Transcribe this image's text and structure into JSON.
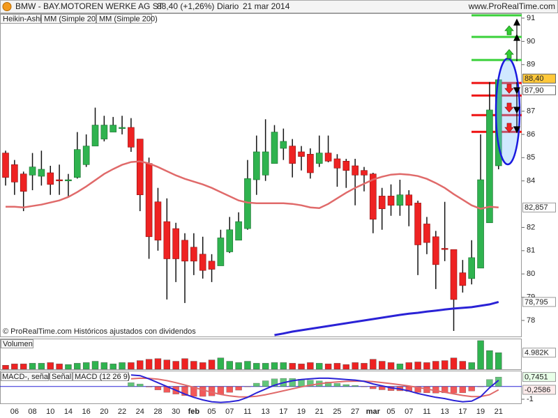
{
  "header": {
    "title": "BMW - BAY.MOTOREN WERKE AG ST",
    "price": "88,40 (+1,26%)",
    "period": "Diario",
    "date": "21 mar 2014",
    "site": "www.ProRealTime.com"
  },
  "footer_note": "© ProRealTime.com Históricos ajustados con dividendos",
  "chart_data": [
    {
      "type": "candlestick",
      "candle_name": "Heikin-Ashi",
      "up_color": "#2fb34f",
      "down_color": "#ee2222",
      "categories": [
        null,
        "06",
        null,
        "08",
        null,
        "10",
        null,
        "14",
        null,
        "16",
        null,
        "20",
        null,
        "22",
        null,
        "24",
        null,
        "28",
        null,
        "30",
        null,
        "feb",
        null,
        "05",
        null,
        "07",
        null,
        "11",
        null,
        "13",
        null,
        "17",
        null,
        "19",
        null,
        "21",
        null,
        "25",
        null,
        "27",
        null,
        "mar",
        null,
        "05",
        null,
        "07",
        null,
        "11",
        null,
        "13",
        null,
        "17",
        null,
        "19",
        null,
        "21"
      ],
      "open": [
        85.2,
        84.7,
        84.3,
        84.25,
        84.2,
        84.35,
        84.05,
        84.0,
        84.15,
        84.7,
        85.5,
        85.8,
        86.1,
        86.25,
        86.3,
        85.8,
        84.75,
        83.1,
        82.25,
        81.95,
        81.45,
        81.15,
        80.85,
        80.55,
        80.35,
        80.95,
        81.45,
        81.95,
        84.05,
        84.25,
        84.75,
        85.4,
        85.5,
        85.25,
        85.15,
        84.75,
        85.2,
        84.95,
        84.85,
        84.65,
        84.45,
        84.3,
        83.35,
        83.35,
        82.95,
        83.4,
        83.05,
        82.15,
        81.6,
        81.1,
        81.05,
        80.05,
        79.8,
        80.25,
        82.2,
        84.65
      ],
      "high": [
        85.3,
        84.9,
        84.4,
        85.2,
        85.3,
        84.65,
        84.7,
        84.3,
        86.1,
        86.0,
        87.15,
        86.8,
        86.75,
        86.8,
        86.7,
        85.8,
        85.0,
        83.7,
        83.25,
        82.2,
        81.75,
        81.75,
        81.6,
        80.85,
        81.9,
        82.45,
        82.65,
        84.9,
        85.95,
        86.65,
        86.4,
        86.25,
        85.8,
        85.5,
        85.4,
        85.95,
        85.95,
        85.15,
        84.95,
        84.95,
        84.6,
        84.35,
        83.7,
        83.85,
        84.05,
        83.6,
        83.15,
        82.45,
        81.85,
        83.1,
        81.05,
        80.6,
        81.45,
        86.0,
        88.25,
        88.5
      ],
      "low": [
        83.8,
        83.4,
        82.7,
        83.6,
        83.8,
        83.4,
        83.4,
        83.3,
        84.1,
        84.6,
        85.5,
        85.7,
        86.1,
        86.0,
        85.25,
        82.7,
        80.65,
        81.0,
        78.9,
        79.65,
        78.75,
        79.95,
        79.8,
        79.65,
        80.35,
        80.9,
        81.45,
        81.9,
        83.4,
        84.0,
        84.75,
        84.9,
        84.15,
        84.45,
        84.1,
        84.6,
        84.8,
        83.75,
        83.7,
        82.95,
        83.55,
        81.75,
        81.9,
        82.5,
        82.5,
        82.05,
        79.95,
        80.85,
        79.35,
        80.55,
        77.55,
        79.2,
        79.55,
        80.25,
        82.2,
        84.5
      ],
      "close": [
        84.15,
        83.95,
        83.55,
        84.6,
        84.5,
        83.85,
        84.0,
        84.05,
        85.35,
        85.5,
        86.4,
        86.4,
        86.4,
        86.3,
        85.45,
        83.4,
        81.6,
        81.45,
        80.65,
        80.65,
        80.55,
        80.55,
        80.15,
        80.2,
        81.55,
        81.9,
        82.25,
        84.1,
        85.25,
        85.25,
        86.1,
        85.7,
        84.75,
        85.05,
        84.35,
        85.2,
        84.85,
        84.55,
        84.45,
        84.25,
        84.25,
        82.35,
        82.8,
        82.95,
        83.4,
        82.95,
        81.25,
        81.35,
        80.4,
        81.05,
        78.9,
        79.5,
        80.7,
        84.05,
        87.05,
        88.35
      ],
      "series": [
        {
          "name": "MM (Simple 20)",
          "color": "#e06a6a",
          "last_label": "82,857",
          "values": [
            82.89,
            82.89,
            82.86,
            82.92,
            82.98,
            83.07,
            83.16,
            83.31,
            83.52,
            83.76,
            84.03,
            84.3,
            84.51,
            84.69,
            84.81,
            84.84,
            84.75,
            84.6,
            84.42,
            84.24,
            84.09,
            83.97,
            83.85,
            83.7,
            83.52,
            83.34,
            83.16,
            83.07,
            83.04,
            83.04,
            83.04,
            83.04,
            83.01,
            82.95,
            82.86,
            82.83,
            83.01,
            83.25,
            83.49,
            83.7,
            83.88,
            84.06,
            84.18,
            84.27,
            84.3,
            84.27,
            84.21,
            84.09,
            83.91,
            83.7,
            83.43,
            83.19,
            82.95,
            82.8,
            82.89,
            82.857
          ]
        },
        {
          "name": "MM (Simple 200)",
          "color": "#2a22d6",
          "last_label": "78,795",
          "values": [
            null,
            null,
            null,
            null,
            null,
            null,
            null,
            null,
            null,
            null,
            null,
            null,
            null,
            null,
            null,
            null,
            null,
            null,
            null,
            null,
            null,
            null,
            null,
            null,
            null,
            null,
            null,
            null,
            null,
            null,
            77.37,
            77.44,
            77.52,
            77.58,
            77.64,
            77.7,
            77.76,
            77.82,
            77.88,
            77.94,
            78.0,
            78.06,
            78.12,
            78.18,
            78.24,
            78.29,
            78.33,
            78.38,
            78.42,
            78.47,
            78.51,
            78.54,
            78.57,
            78.63,
            78.69,
            78.795
          ]
        }
      ],
      "price_labels": [
        {
          "value": 88.4,
          "label": "88,40",
          "color": "#ffc83a"
        },
        {
          "value": 87.9,
          "label": "87,90",
          "color": "#ffffff"
        }
      ],
      "levels": [
        {
          "value": 91.12,
          "color": "#3ad13a"
        },
        {
          "value": 90.19,
          "color": "#3ad13a"
        },
        {
          "value": 89.2,
          "color": "#3ad13a"
        },
        {
          "value": 88.21,
          "color": "#ee1111"
        },
        {
          "value": 87.67,
          "color": "#ee1111"
        },
        {
          "value": 86.83,
          "color": "#ee1111"
        },
        {
          "value": 86.11,
          "color": "#ee1111"
        }
      ],
      "ylim": [
        77.31,
        91.21
      ],
      "yticks": [
        78,
        79,
        80,
        81,
        82,
        84,
        85,
        86,
        87,
        89,
        90,
        91
      ]
    },
    {
      "type": "bar",
      "title": "Volumen",
      "last_label": "4.982K",
      "ylim": [
        0,
        9000
      ],
      "values": [
        1200,
        1600,
        1600,
        1800,
        1800,
        2000,
        1600,
        1400,
        1800,
        2000,
        2400,
        2000,
        1600,
        2000,
        2000,
        2600,
        3000,
        3200,
        2800,
        2400,
        3200,
        2400,
        2000,
        2800,
        3400,
        2400,
        2000,
        2400,
        1800,
        1800,
        2000,
        2000,
        1800,
        1600,
        2000,
        1800,
        1600,
        1800,
        1400,
        2000,
        1800,
        3000,
        2400,
        2000,
        1600,
        2000,
        2200,
        2000,
        2400,
        2600,
        3400,
        2400,
        2000,
        8600,
        5600,
        4982
      ]
    },
    {
      "type": "line",
      "ylim": [
        -1.38,
        1.19
      ],
      "yticks": [
        -1
      ],
      "series": [
        {
          "name": "MACD-, señal",
          "kind": "bar",
          "color": "#2fb34f",
          "down_color": "#ee2222",
          "last_label": "0,7451",
          "values": [
            null,
            null,
            null,
            null,
            null,
            null,
            null,
            null,
            null,
            null,
            null,
            null,
            null,
            null,
            0.3,
            0.2,
            -0.04,
            -0.27,
            -0.46,
            -0.6,
            -0.72,
            -0.78,
            -0.78,
            -0.74,
            -0.63,
            -0.46,
            -0.29,
            -0.03,
            0.26,
            0.45,
            0.6,
            0.64,
            0.63,
            0.58,
            0.5,
            0.44,
            0.35,
            0.24,
            0.15,
            0.08,
            -0.02,
            -0.18,
            -0.26,
            -0.33,
            -0.34,
            -0.39,
            -0.47,
            -0.5,
            -0.52,
            -0.5,
            -0.52,
            -0.5,
            -0.36,
            -0.01,
            0.55,
            0.7451
          ]
        },
        {
          "name": "Señal",
          "kind": "line",
          "color": "#e06a6a",
          "last_label": "-0,2586",
          "values": [
            null,
            null,
            null,
            null,
            null,
            null,
            null,
            null,
            null,
            null,
            null,
            null,
            null,
            null,
            0.6,
            0.65,
            0.64,
            0.57,
            0.46,
            0.3,
            0.12,
            -0.07,
            -0.27,
            -0.46,
            -0.62,
            -0.74,
            -0.81,
            -0.82,
            -0.76,
            -0.65,
            -0.5,
            -0.34,
            -0.18,
            -0.03,
            0.1,
            0.21,
            0.3,
            0.36,
            0.4,
            0.42,
            0.42,
            0.38,
            0.31,
            0.23,
            0.14,
            0.04,
            -0.08,
            -0.2,
            -0.33,
            -0.45,
            -0.58,
            -0.7,
            -0.79,
            -0.79,
            -0.65,
            -0.2586
          ]
        },
        {
          "name": "MACD (12 26 9)",
          "kind": "line",
          "color": "#2a22d6",
          "values": [
            null,
            null,
            null,
            null,
            null,
            null,
            null,
            null,
            null,
            null,
            null,
            null,
            null,
            null,
            0.9,
            0.85,
            0.6,
            0.3,
            0.0,
            -0.3,
            -0.6,
            -0.85,
            -1.05,
            -1.2,
            -1.25,
            -1.2,
            -1.1,
            -0.85,
            -0.5,
            -0.2,
            0.1,
            0.3,
            0.45,
            0.55,
            0.6,
            0.65,
            0.65,
            0.6,
            0.55,
            0.5,
            0.4,
            0.2,
            0.05,
            -0.1,
            -0.2,
            -0.35,
            -0.55,
            -0.7,
            -0.85,
            -0.95,
            -1.1,
            -1.2,
            -1.15,
            -0.8,
            -0.1,
            0.4865
          ]
        }
      ]
    }
  ]
}
